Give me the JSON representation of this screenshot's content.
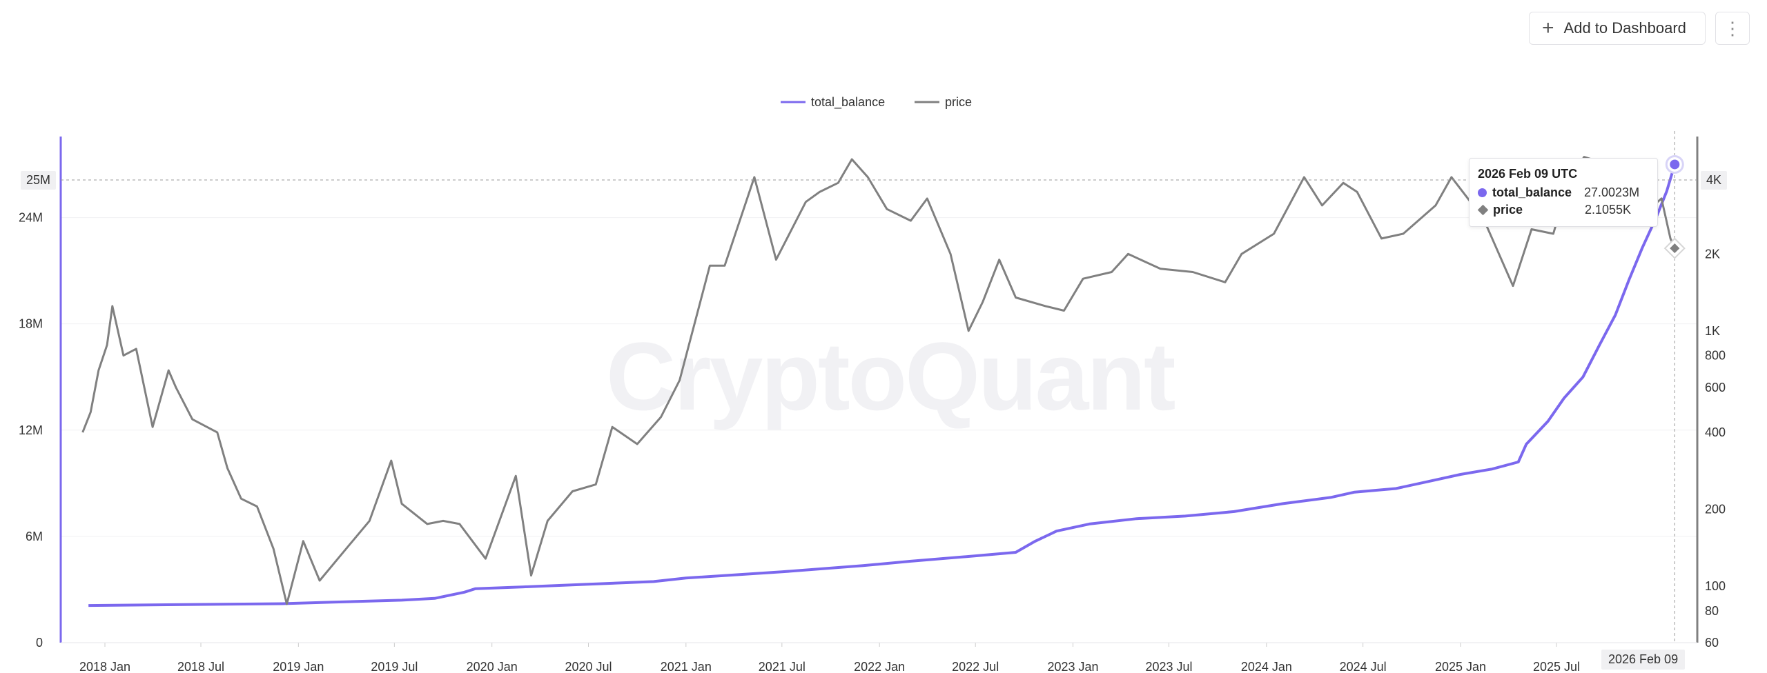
{
  "toolbar": {
    "add_label": "Add to Dashboard",
    "plus_icon": "plus-icon",
    "more_icon": "more-vertical-icon"
  },
  "watermark": "CryptoQuant",
  "tooltip": {
    "date": "2026 Feb 09 UTC",
    "rows": [
      {
        "name": "total_balance",
        "value": "27.0023M",
        "color": "#7b68ee"
      },
      {
        "name": "price",
        "value": "2.1055K",
        "color": "#808080"
      }
    ]
  },
  "crosshair": {
    "left_value_label": "25M",
    "right_value_label": "4K",
    "date_label": "2026 Feb 09"
  },
  "chart_data": {
    "type": "line",
    "series": [
      {
        "name": "total_balance",
        "axis": "left",
        "color": "#7b68ee",
        "points": [
          [
            "2017-12-01",
            2100000
          ],
          [
            "2018-06-01",
            2150000
          ],
          [
            "2018-12-01",
            2200000
          ],
          [
            "2019-03-01",
            2280000
          ],
          [
            "2019-07-15",
            2400000
          ],
          [
            "2019-09-15",
            2500000
          ],
          [
            "2019-11-10",
            2850000
          ],
          [
            "2019-12-01",
            3050000
          ],
          [
            "2020-03-01",
            3150000
          ],
          [
            "2020-07-01",
            3300000
          ],
          [
            "2020-11-01",
            3450000
          ],
          [
            "2021-01-01",
            3650000
          ],
          [
            "2021-07-01",
            4000000
          ],
          [
            "2021-12-01",
            4350000
          ],
          [
            "2022-03-01",
            4600000
          ],
          [
            "2022-07-01",
            4900000
          ],
          [
            "2022-09-15",
            5100000
          ],
          [
            "2022-10-20",
            5700000
          ],
          [
            "2022-12-01",
            6300000
          ],
          [
            "2023-02-01",
            6700000
          ],
          [
            "2023-05-01",
            7000000
          ],
          [
            "2023-08-01",
            7150000
          ],
          [
            "2023-11-01",
            7400000
          ],
          [
            "2024-02-01",
            7850000
          ],
          [
            "2024-05-01",
            8200000
          ],
          [
            "2024-06-15",
            8500000
          ],
          [
            "2024-09-01",
            8700000
          ],
          [
            "2024-11-01",
            9100000
          ],
          [
            "2025-01-01",
            9500000
          ],
          [
            "2025-03-01",
            9800000
          ],
          [
            "2025-04-20",
            10200000
          ],
          [
            "2025-05-05",
            11200000
          ],
          [
            "2025-06-15",
            12500000
          ],
          [
            "2025-07-15",
            13800000
          ],
          [
            "2025-08-20",
            15000000
          ],
          [
            "2025-09-20",
            16800000
          ],
          [
            "2025-10-20",
            18500000
          ],
          [
            "2025-11-15",
            20500000
          ],
          [
            "2025-12-10",
            22300000
          ],
          [
            "2026-01-05",
            24000000
          ],
          [
            "2026-01-25",
            25500000
          ],
          [
            "2026-02-09",
            27002300
          ]
        ]
      },
      {
        "name": "price",
        "axis": "right",
        "color": "#808080",
        "points": [
          [
            "2017-11-20",
            400
          ],
          [
            "2017-12-05",
            480
          ],
          [
            "2017-12-20",
            700
          ],
          [
            "2018-01-05",
            880
          ],
          [
            "2018-01-15",
            1250
          ],
          [
            "2018-02-05",
            800
          ],
          [
            "2018-03-01",
            850
          ],
          [
            "2018-04-01",
            420
          ],
          [
            "2018-05-01",
            700
          ],
          [
            "2018-05-15",
            600
          ],
          [
            "2018-06-15",
            450
          ],
          [
            "2018-08-01",
            400
          ],
          [
            "2018-08-20",
            290
          ],
          [
            "2018-09-15",
            220
          ],
          [
            "2018-10-15",
            205
          ],
          [
            "2018-11-15",
            140
          ],
          [
            "2018-12-10",
            85
          ],
          [
            "2019-01-10",
            150
          ],
          [
            "2019-02-10",
            105
          ],
          [
            "2019-04-01",
            140
          ],
          [
            "2019-05-15",
            180
          ],
          [
            "2019-06-25",
            310
          ],
          [
            "2019-07-15",
            210
          ],
          [
            "2019-09-01",
            175
          ],
          [
            "2019-10-01",
            180
          ],
          [
            "2019-11-01",
            175
          ],
          [
            "2019-12-20",
            128
          ],
          [
            "2020-02-15",
            270
          ],
          [
            "2020-03-15",
            110
          ],
          [
            "2020-04-15",
            180
          ],
          [
            "2020-06-01",
            235
          ],
          [
            "2020-07-15",
            250
          ],
          [
            "2020-08-15",
            420
          ],
          [
            "2020-10-01",
            360
          ],
          [
            "2020-11-15",
            460
          ],
          [
            "2020-12-20",
            640
          ],
          [
            "2021-02-15",
            1800
          ],
          [
            "2021-03-15",
            1800
          ],
          [
            "2021-05-10",
            4000
          ],
          [
            "2021-06-20",
            1900
          ],
          [
            "2021-08-15",
            3200
          ],
          [
            "2021-09-10",
            3500
          ],
          [
            "2021-10-15",
            3800
          ],
          [
            "2021-11-10",
            4700
          ],
          [
            "2021-12-10",
            4000
          ],
          [
            "2022-01-15",
            3000
          ],
          [
            "2022-03-01",
            2700
          ],
          [
            "2022-04-01",
            3300
          ],
          [
            "2022-05-15",
            2000
          ],
          [
            "2022-06-18",
            1000
          ],
          [
            "2022-07-15",
            1300
          ],
          [
            "2022-08-15",
            1900
          ],
          [
            "2022-09-15",
            1350
          ],
          [
            "2022-11-10",
            1250
          ],
          [
            "2022-12-15",
            1200
          ],
          [
            "2023-01-20",
            1600
          ],
          [
            "2023-03-15",
            1700
          ],
          [
            "2023-04-15",
            2000
          ],
          [
            "2023-06-15",
            1750
          ],
          [
            "2023-08-15",
            1700
          ],
          [
            "2023-10-15",
            1550
          ],
          [
            "2023-11-15",
            2000
          ],
          [
            "2024-01-15",
            2400
          ],
          [
            "2024-03-12",
            4000
          ],
          [
            "2024-04-15",
            3100
          ],
          [
            "2024-05-25",
            3800
          ],
          [
            "2024-06-20",
            3500
          ],
          [
            "2024-08-05",
            2300
          ],
          [
            "2024-09-15",
            2400
          ],
          [
            "2024-11-15",
            3100
          ],
          [
            "2024-12-15",
            4000
          ],
          [
            "2025-01-15",
            3300
          ],
          [
            "2025-02-15",
            2700
          ],
          [
            "2025-04-10",
            1500
          ],
          [
            "2025-05-15",
            2500
          ],
          [
            "2025-06-25",
            2400
          ],
          [
            "2025-07-20",
            3600
          ],
          [
            "2025-08-22",
            4800
          ],
          [
            "2025-10-05",
            4500
          ],
          [
            "2025-11-15",
            3200
          ],
          [
            "2025-12-15",
            2900
          ],
          [
            "2026-01-15",
            3300
          ],
          [
            "2026-02-01",
            2300
          ],
          [
            "2026-02-09",
            2105.5
          ]
        ]
      }
    ],
    "x_ticks": [
      "2018 Jan",
      "2018 Jul",
      "2019 Jan",
      "2019 Jul",
      "2020 Jan",
      "2020 Jul",
      "2021 Jan",
      "2021 Jul",
      "2022 Jan",
      "2022 Jul",
      "2023 Jan",
      "2023 Jul",
      "2024 Jan",
      "2024 Jul",
      "2025 Jan",
      "2025 Jul"
    ],
    "y_left_ticks": [
      "0",
      "6M",
      "12M",
      "18M",
      "24M"
    ],
    "y_left_range": [
      0,
      28500000
    ],
    "y_right_ticks": [
      "60",
      "80",
      "100",
      "200",
      "400",
      "600",
      "800",
      "1K",
      "2K"
    ],
    "y_right_range": [
      60,
      5700
    ],
    "y_right_scale": "log",
    "legend_position": "top-center",
    "grid": true
  }
}
